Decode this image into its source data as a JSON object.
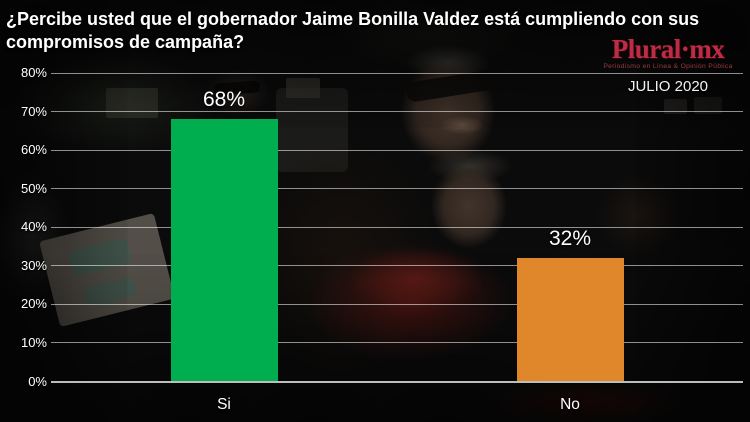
{
  "title": "¿Percibe usted que el gobernador Jaime Bonilla Valdez está cumpliendo con sus compromisos de campaña?",
  "branding": {
    "logo_text": "Plural·mx",
    "tagline": "Periodismo en Línea & Opinión Pública",
    "period": "JULIO 2020",
    "logo_color": "#be2b44"
  },
  "chart_data": {
    "type": "bar",
    "title": "¿Percibe usted que el gobernador Jaime Bonilla Valdez está cumpliendo con sus compromisos de campaña?",
    "categories": [
      "Si",
      "No"
    ],
    "values": [
      68,
      32
    ],
    "value_labels": [
      "68%",
      "32%"
    ],
    "bar_colors": [
      "#00ad4f",
      "#e0862b"
    ],
    "xlabel": "",
    "ylabel": "",
    "ylim": [
      0,
      80
    ],
    "ytick_step": 10,
    "ytick_labels": [
      "0%",
      "10%",
      "20%",
      "30%",
      "40%",
      "50%",
      "60%",
      "70%",
      "80%"
    ],
    "grid": true,
    "gridline_color": "rgba(255,255,255,0.55)",
    "text_color": "#ffffff",
    "legend": null,
    "background": "darkened crowd photo"
  }
}
